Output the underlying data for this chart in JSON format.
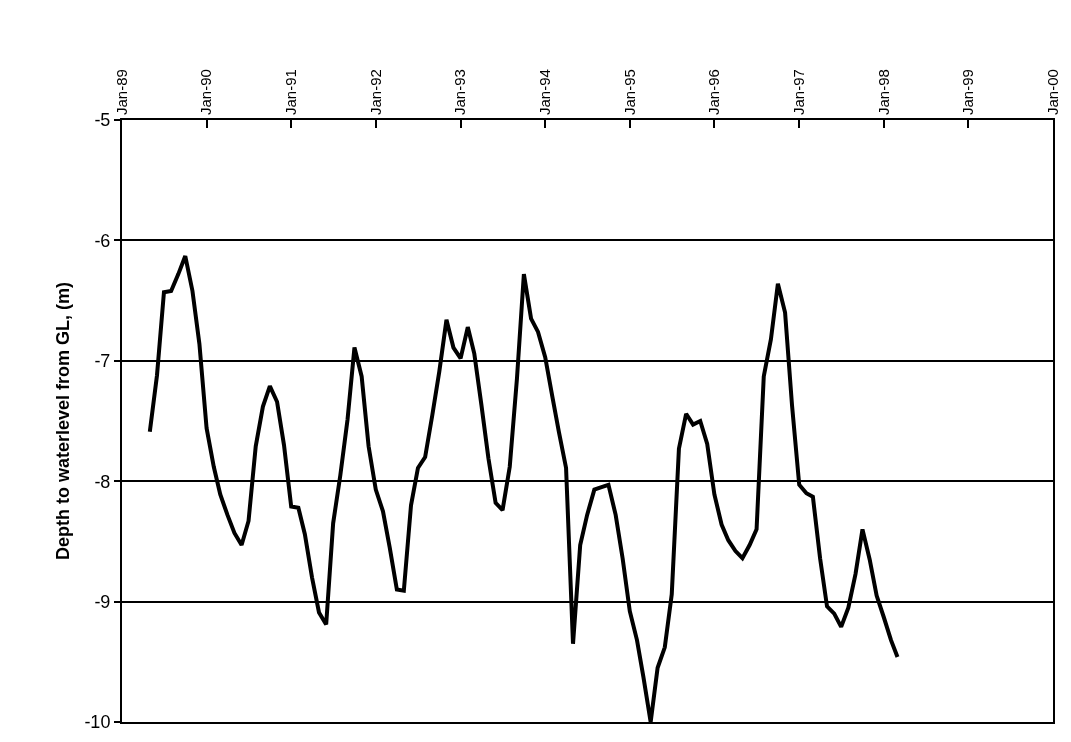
{
  "chart_data": {
    "type": "line",
    "ylabel": "Depth to waterlevel from GL, (m)",
    "series": [
      {
        "color": "#000000",
        "x": [
          "1989-05",
          "1989-06",
          "1989-07",
          "1989-08",
          "1989-09",
          "1989-10",
          "1989-11",
          "1989-12",
          "1990-01",
          "1990-02",
          "1990-03",
          "1990-04",
          "1990-05",
          "1990-06",
          "1990-07",
          "1990-08",
          "1990-09",
          "1990-10",
          "1990-11",
          "1990-12",
          "1991-01",
          "1991-02",
          "1991-03",
          "1991-04",
          "1991-05",
          "1991-06",
          "1991-07",
          "1991-08",
          "1991-09",
          "1991-10",
          "1991-11",
          "1991-12",
          "1992-01",
          "1992-02",
          "1992-03",
          "1992-04",
          "1992-05",
          "1992-06",
          "1992-07",
          "1992-08",
          "1992-09",
          "1992-10",
          "1992-11",
          "1992-12",
          "1993-01",
          "1993-02",
          "1993-03",
          "1993-04",
          "1993-05",
          "1993-06",
          "1993-07",
          "1993-08",
          "1993-09",
          "1993-10",
          "1993-11",
          "1993-12",
          "1994-01",
          "1994-02",
          "1994-03",
          "1994-04",
          "1994-05",
          "1994-06",
          "1994-07",
          "1994-08",
          "1994-09",
          "1994-10",
          "1994-11",
          "1994-12",
          "1995-01",
          "1995-02",
          "1995-03",
          "1995-04",
          "1995-05",
          "1995-06",
          "1995-07",
          "1995-08",
          "1995-09",
          "1995-10",
          "1995-11",
          "1995-12",
          "1996-01",
          "1996-02",
          "1996-03",
          "1996-04",
          "1996-05",
          "1996-06",
          "1996-07",
          "1996-08",
          "1996-09",
          "1996-10",
          "1996-11",
          "1996-12",
          "1997-01",
          "1997-02",
          "1997-03",
          "1997-04",
          "1997-05",
          "1997-06",
          "1997-07",
          "1997-08",
          "1997-09",
          "1997-10",
          "1997-11",
          "1997-12",
          "1998-01",
          "1998-02",
          "1998-03"
        ],
        "values": [
          -7.59,
          -7.12,
          -6.43,
          -6.42,
          -6.28,
          -6.13,
          -6.42,
          -6.86,
          -7.56,
          -7.88,
          -8.11,
          -8.28,
          -8.43,
          -8.53,
          -8.33,
          -7.71,
          -7.38,
          -7.21,
          -7.34,
          -7.7,
          -8.21,
          -8.22,
          -8.44,
          -8.8,
          -9.09,
          -9.19,
          -8.35,
          -7.95,
          -7.49,
          -6.89,
          -7.13,
          -7.71,
          -8.07,
          -8.25,
          -8.55,
          -8.9,
          -8.91,
          -8.2,
          -7.89,
          -7.8,
          -7.45,
          -7.09,
          -6.66,
          -6.89,
          -6.98,
          -6.72,
          -6.94,
          -7.37,
          -7.81,
          -8.18,
          -8.24,
          -7.88,
          -7.15,
          -6.28,
          -6.65,
          -6.76,
          -6.97,
          -7.3,
          -7.59,
          -7.89,
          -9.35,
          -8.53,
          -8.28,
          -8.07,
          -8.05,
          -8.03,
          -8.28,
          -8.64,
          -9.08,
          -9.32,
          -9.63,
          -10.0,
          -9.55,
          -9.38,
          -8.94,
          -7.73,
          -7.44,
          -7.53,
          -7.5,
          -7.69,
          -8.11,
          -8.36,
          -8.49,
          -8.58,
          -8.64,
          -8.53,
          -8.4,
          -7.13,
          -6.82,
          -6.36,
          -6.6,
          -7.37,
          -8.03,
          -8.1,
          -8.13,
          -8.64,
          -9.04,
          -9.1,
          -9.21,
          -9.05,
          -8.77,
          -8.4,
          -8.65,
          -8.95,
          -9.13,
          -9.32,
          -9.46
        ]
      }
    ],
    "xlim": [
      "1989-01",
      "2000-01"
    ],
    "xticks": [
      {
        "value": "1989-01",
        "label": "Jan-89"
      },
      {
        "value": "1990-01",
        "label": "Jan-90"
      },
      {
        "value": "1991-01",
        "label": "Jan-91"
      },
      {
        "value": "1992-01",
        "label": "Jan-92"
      },
      {
        "value": "1993-01",
        "label": "Jan-93"
      },
      {
        "value": "1994-01",
        "label": "Jan-94"
      },
      {
        "value": "1995-01",
        "label": "Jan-95"
      },
      {
        "value": "1996-01",
        "label": "Jan-96"
      },
      {
        "value": "1997-01",
        "label": "Jan-97"
      },
      {
        "value": "1998-01",
        "label": "Jan-98"
      },
      {
        "value": "1999-01",
        "label": "Jan-99"
      },
      {
        "value": "2000-01",
        "label": "Jan-00"
      }
    ],
    "ylim": [
      -10,
      -5
    ],
    "yticks": [
      -10,
      -9,
      -8,
      -7,
      -6,
      -5
    ],
    "grid": "y",
    "marker": "none",
    "line_style": "solid"
  }
}
